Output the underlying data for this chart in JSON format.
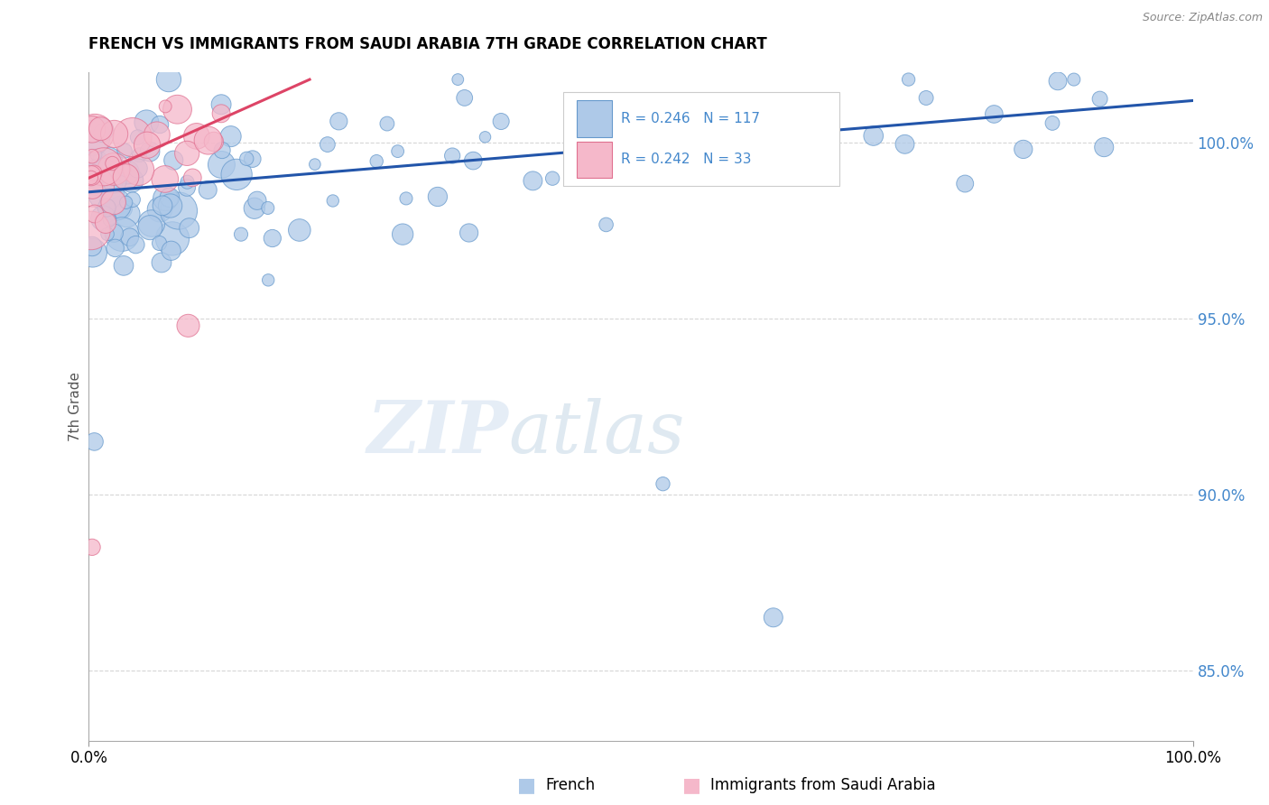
{
  "title": "FRENCH VS IMMIGRANTS FROM SAUDI ARABIA 7TH GRADE CORRELATION CHART",
  "source_text": "Source: ZipAtlas.com",
  "ylabel": "7th Grade",
  "xlim": [
    0.0,
    100.0
  ],
  "ylim": [
    83.0,
    102.0
  ],
  "right_yticks": [
    85.0,
    90.0,
    95.0,
    100.0
  ],
  "right_ytick_labels": [
    "85.0%",
    "90.0%",
    "95.0%",
    "100.0%"
  ],
  "blue_r": "0.246",
  "blue_n": "117",
  "pink_r": "0.242",
  "pink_n": "33",
  "blue_color": "#aec9e8",
  "blue_edge": "#6699cc",
  "pink_color": "#f5b8ca",
  "pink_edge": "#e07090",
  "blue_trend_color": "#2255aa",
  "pink_trend_color": "#dd4466",
  "legend_label_blue": "French",
  "legend_label_pink": "Immigrants from Saudi Arabia",
  "watermark_zip": "ZIP",
  "watermark_atlas": "atlas",
  "grid_color": "#cccccc",
  "ytick_color": "#4488cc"
}
